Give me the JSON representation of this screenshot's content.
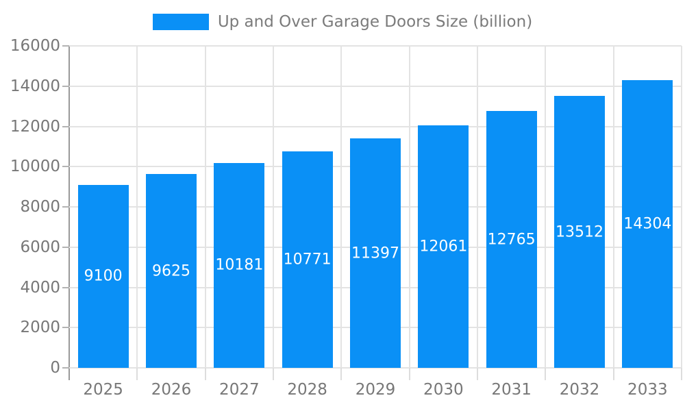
{
  "chart_data": {
    "type": "bar",
    "title": "Up and Over Garage Doors Size (billion)",
    "categories": [
      "2025",
      "2026",
      "2027",
      "2028",
      "2029",
      "2030",
      "2031",
      "2032",
      "2033"
    ],
    "values": [
      9100,
      9625,
      10181,
      10771,
      11397,
      12061,
      12765,
      13512,
      14304
    ],
    "xlabel": "",
    "ylabel": "",
    "ylim": [
      0,
      16000
    ],
    "ytick_step": 2000,
    "ytick_labels": [
      "0",
      "2000",
      "4000",
      "6000",
      "8000",
      "10000",
      "12000",
      "14000",
      "16000"
    ],
    "grid": true,
    "legend_position": "top",
    "value_labels_inside_bars": true,
    "colors": {
      "bar": "#0a90f6",
      "bar_value_text": "#ffffff",
      "grid": "#e3e3e3",
      "axis_line": "#999999",
      "y_tick": "#b3b3b3",
      "x_tick": "#dddddd",
      "label_text": "#777777"
    }
  }
}
